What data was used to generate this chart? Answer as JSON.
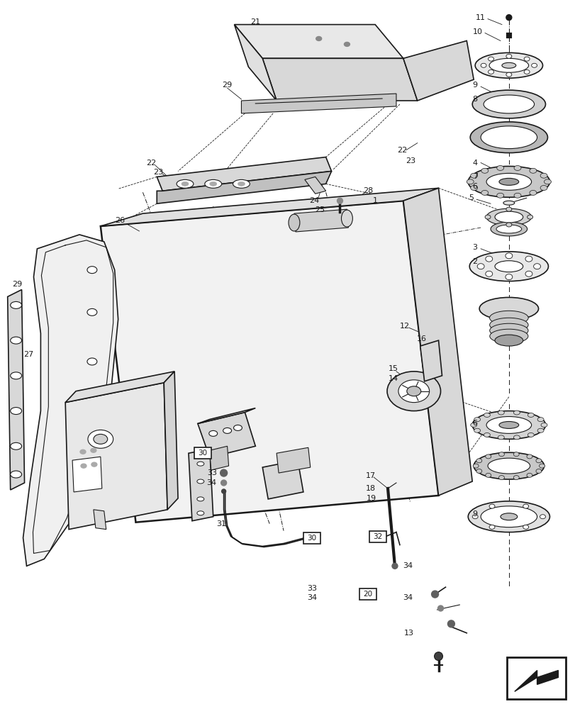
{
  "background_color": "#ffffff",
  "line_color": "#1a1a1a",
  "fig_width": 8.12,
  "fig_height": 10.0,
  "dpi": 100
}
